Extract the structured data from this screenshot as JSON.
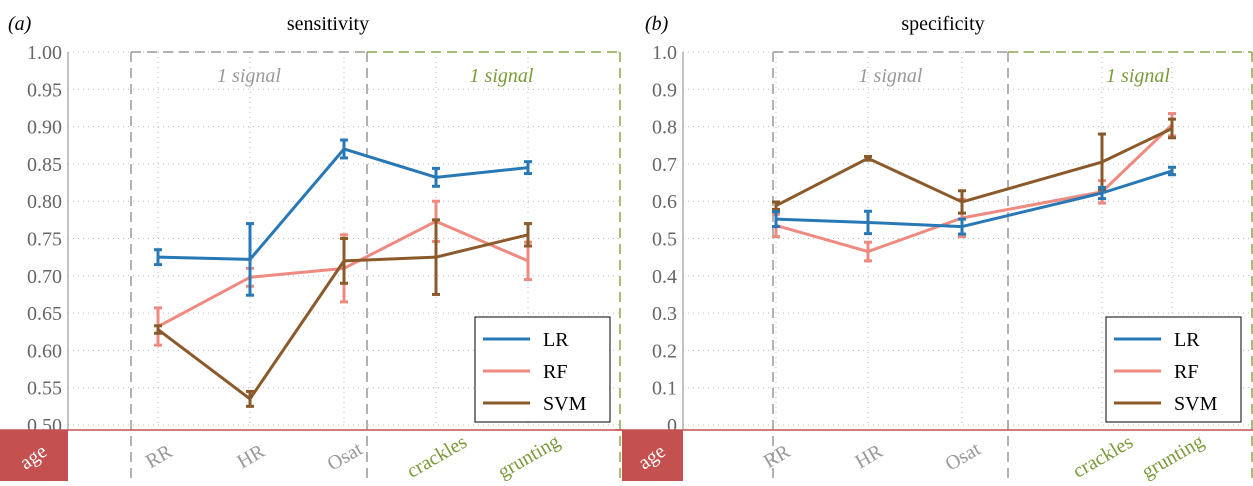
{
  "colors": {
    "LR": "#2878b5",
    "RF": "#ee8a80",
    "SVM": "#8b5a2b",
    "gray_text": "#999999",
    "green_text": "#7a9a3a",
    "age_fill": "#c45050",
    "baseline": "#c45050"
  },
  "chart_data": [
    {
      "type": "line",
      "panel_label": "(a)",
      "title": "sensitivity",
      "categories": [
        "RR",
        "HR",
        "Osat",
        "crackles",
        "grunting"
      ],
      "age_label": "age",
      "group_labels": [
        "1 signal",
        "1 signal"
      ],
      "ylim": [
        0.5,
        1.0
      ],
      "yticks": [
        "0.50",
        "0.55",
        "0.60",
        "0.65",
        "0.70",
        "0.75",
        "0.80",
        "0.85",
        "0.90",
        "0.95",
        "1.00"
      ],
      "ytick_values": [
        0.5,
        0.55,
        0.6,
        0.65,
        0.7,
        0.75,
        0.8,
        0.85,
        0.9,
        0.95,
        1.0
      ],
      "grid": true,
      "legend_position": "bottom-right",
      "series": [
        {
          "name": "LR",
          "values": [
            0.725,
            0.722,
            0.87,
            0.832,
            0.845
          ],
          "err": [
            0.01,
            0.048,
            0.012,
            0.012,
            0.008
          ]
        },
        {
          "name": "RF",
          "values": [
            0.632,
            0.698,
            0.71,
            0.773,
            0.72
          ],
          "err": [
            0.025,
            0.012,
            0.045,
            0.027,
            0.025
          ]
        },
        {
          "name": "SVM",
          "values": [
            0.628,
            0.535,
            0.72,
            0.725,
            0.755
          ],
          "err": [
            0.005,
            0.01,
            0.03,
            0.05,
            0.015
          ]
        }
      ]
    },
    {
      "type": "line",
      "panel_label": "(b)",
      "title": "specificity",
      "categories": [
        "RR",
        "HR",
        "Osat",
        "crackles",
        "grunting"
      ],
      "age_label": "age",
      "group_labels": [
        "1 signal",
        "1 signal"
      ],
      "ylim": [
        0.0,
        1.0
      ],
      "yticks": [
        "0",
        "0.1",
        "0.2",
        "0.3",
        "0.4",
        "0.5",
        "0.6",
        "0.7",
        "0.8",
        "0.9",
        "1.0"
      ],
      "ytick_values": [
        0,
        0.1,
        0.2,
        0.3,
        0.4,
        0.5,
        0.6,
        0.7,
        0.8,
        0.9,
        1.0
      ],
      "grid": true,
      "legend_position": "bottom-right",
      "series": [
        {
          "name": "LR",
          "values": [
            0.552,
            0.543,
            0.532,
            0.622,
            0.681
          ],
          "err": [
            0.02,
            0.03,
            0.02,
            0.015,
            0.01
          ]
        },
        {
          "name": "RF",
          "values": [
            0.535,
            0.465,
            0.555,
            0.625,
            0.805
          ],
          "err": [
            0.03,
            0.025,
            0.05,
            0.03,
            0.03
          ]
        },
        {
          "name": "SVM",
          "values": [
            0.588,
            0.715,
            0.598,
            0.705,
            0.795
          ],
          "err": [
            0.01,
            0.005,
            0.03,
            0.075,
            0.025
          ]
        }
      ]
    }
  ]
}
